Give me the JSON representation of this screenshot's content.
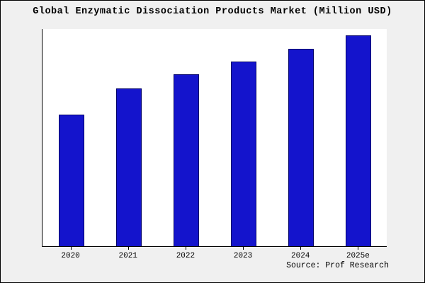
{
  "title": "Global Enzymatic Dissociation Products Market (Million USD)",
  "source": "Source: Prof Research",
  "colors": {
    "background": "#f0f0f0",
    "plot_background": "#ffffff",
    "bar_fill": "#1414cc",
    "bar_border": "#000066",
    "axis": "#000000"
  },
  "chart_data": {
    "type": "bar",
    "title": "Global Enzymatic Dissociation Products Market (Million USD)",
    "categories": [
      "2020",
      "2021",
      "2022",
      "2023",
      "2024",
      "2025e"
    ],
    "values": [
      60.5,
      72.5,
      79,
      85,
      91,
      97
    ],
    "xlabel": "",
    "ylabel": "",
    "ylim": [
      0,
      100
    ],
    "grid": false,
    "legend_position": "none",
    "annotations": [
      "Source: Prof Research"
    ]
  }
}
